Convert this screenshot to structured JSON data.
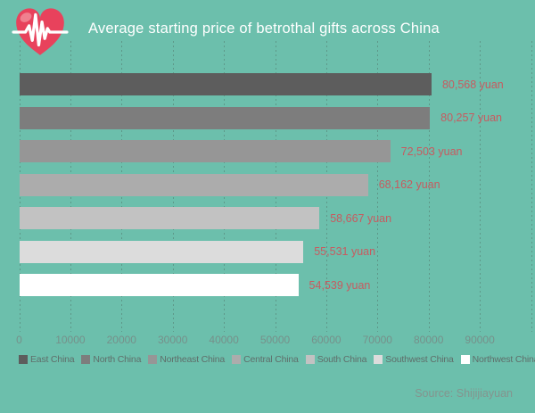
{
  "header": {
    "title": "Average starting price of betrothal gifts across China",
    "logo_icon": "heart-pulse-icon"
  },
  "source": {
    "text": "Source: Shijijiayuan"
  },
  "colors": {
    "background": "#6cbfac",
    "title": "#ffffff",
    "value_label": "#c75b60",
    "axis_tick": "#76908a",
    "legend_text": "#5f6e6a",
    "grid": "#4f7166",
    "source": "#84948e",
    "heart": "#e8425c",
    "heart_highlight": "#f0808f",
    "ecg": "#ffffff"
  },
  "chart_data": {
    "type": "bar",
    "orientation": "horizontal",
    "title": "Average starting price of betrothal gifts across China",
    "categories": [
      "East China",
      "North China",
      "Northeast China",
      "Central China",
      "South China",
      "Southwest China",
      "Northwest China"
    ],
    "values": [
      80568,
      80257,
      72503,
      68162,
      58667,
      55531,
      54539
    ],
    "value_labels": [
      "80,568 yuan",
      "80,257 yuan",
      "72,503 yuan",
      "68,162 yuan",
      "58,667 yuan",
      "55,531 yuan",
      "54,539 yuan"
    ],
    "bar_colors": [
      "#5d5d5d",
      "#7d7d7d",
      "#969696",
      "#acacac",
      "#c2c2c2",
      "#dcdcdc",
      "#ffffff"
    ],
    "x_ticks": [
      "0",
      "10000",
      "20000",
      "30000",
      "40000",
      "50000",
      "60000",
      "70000",
      "80000",
      "90000"
    ],
    "tick_step": 10000,
    "xlim": [
      0,
      100000
    ],
    "xlabel": "",
    "ylabel": "",
    "grid": "dashed-vertical",
    "legend_position": "bottom",
    "source": "Source: Shijijiayuan"
  }
}
